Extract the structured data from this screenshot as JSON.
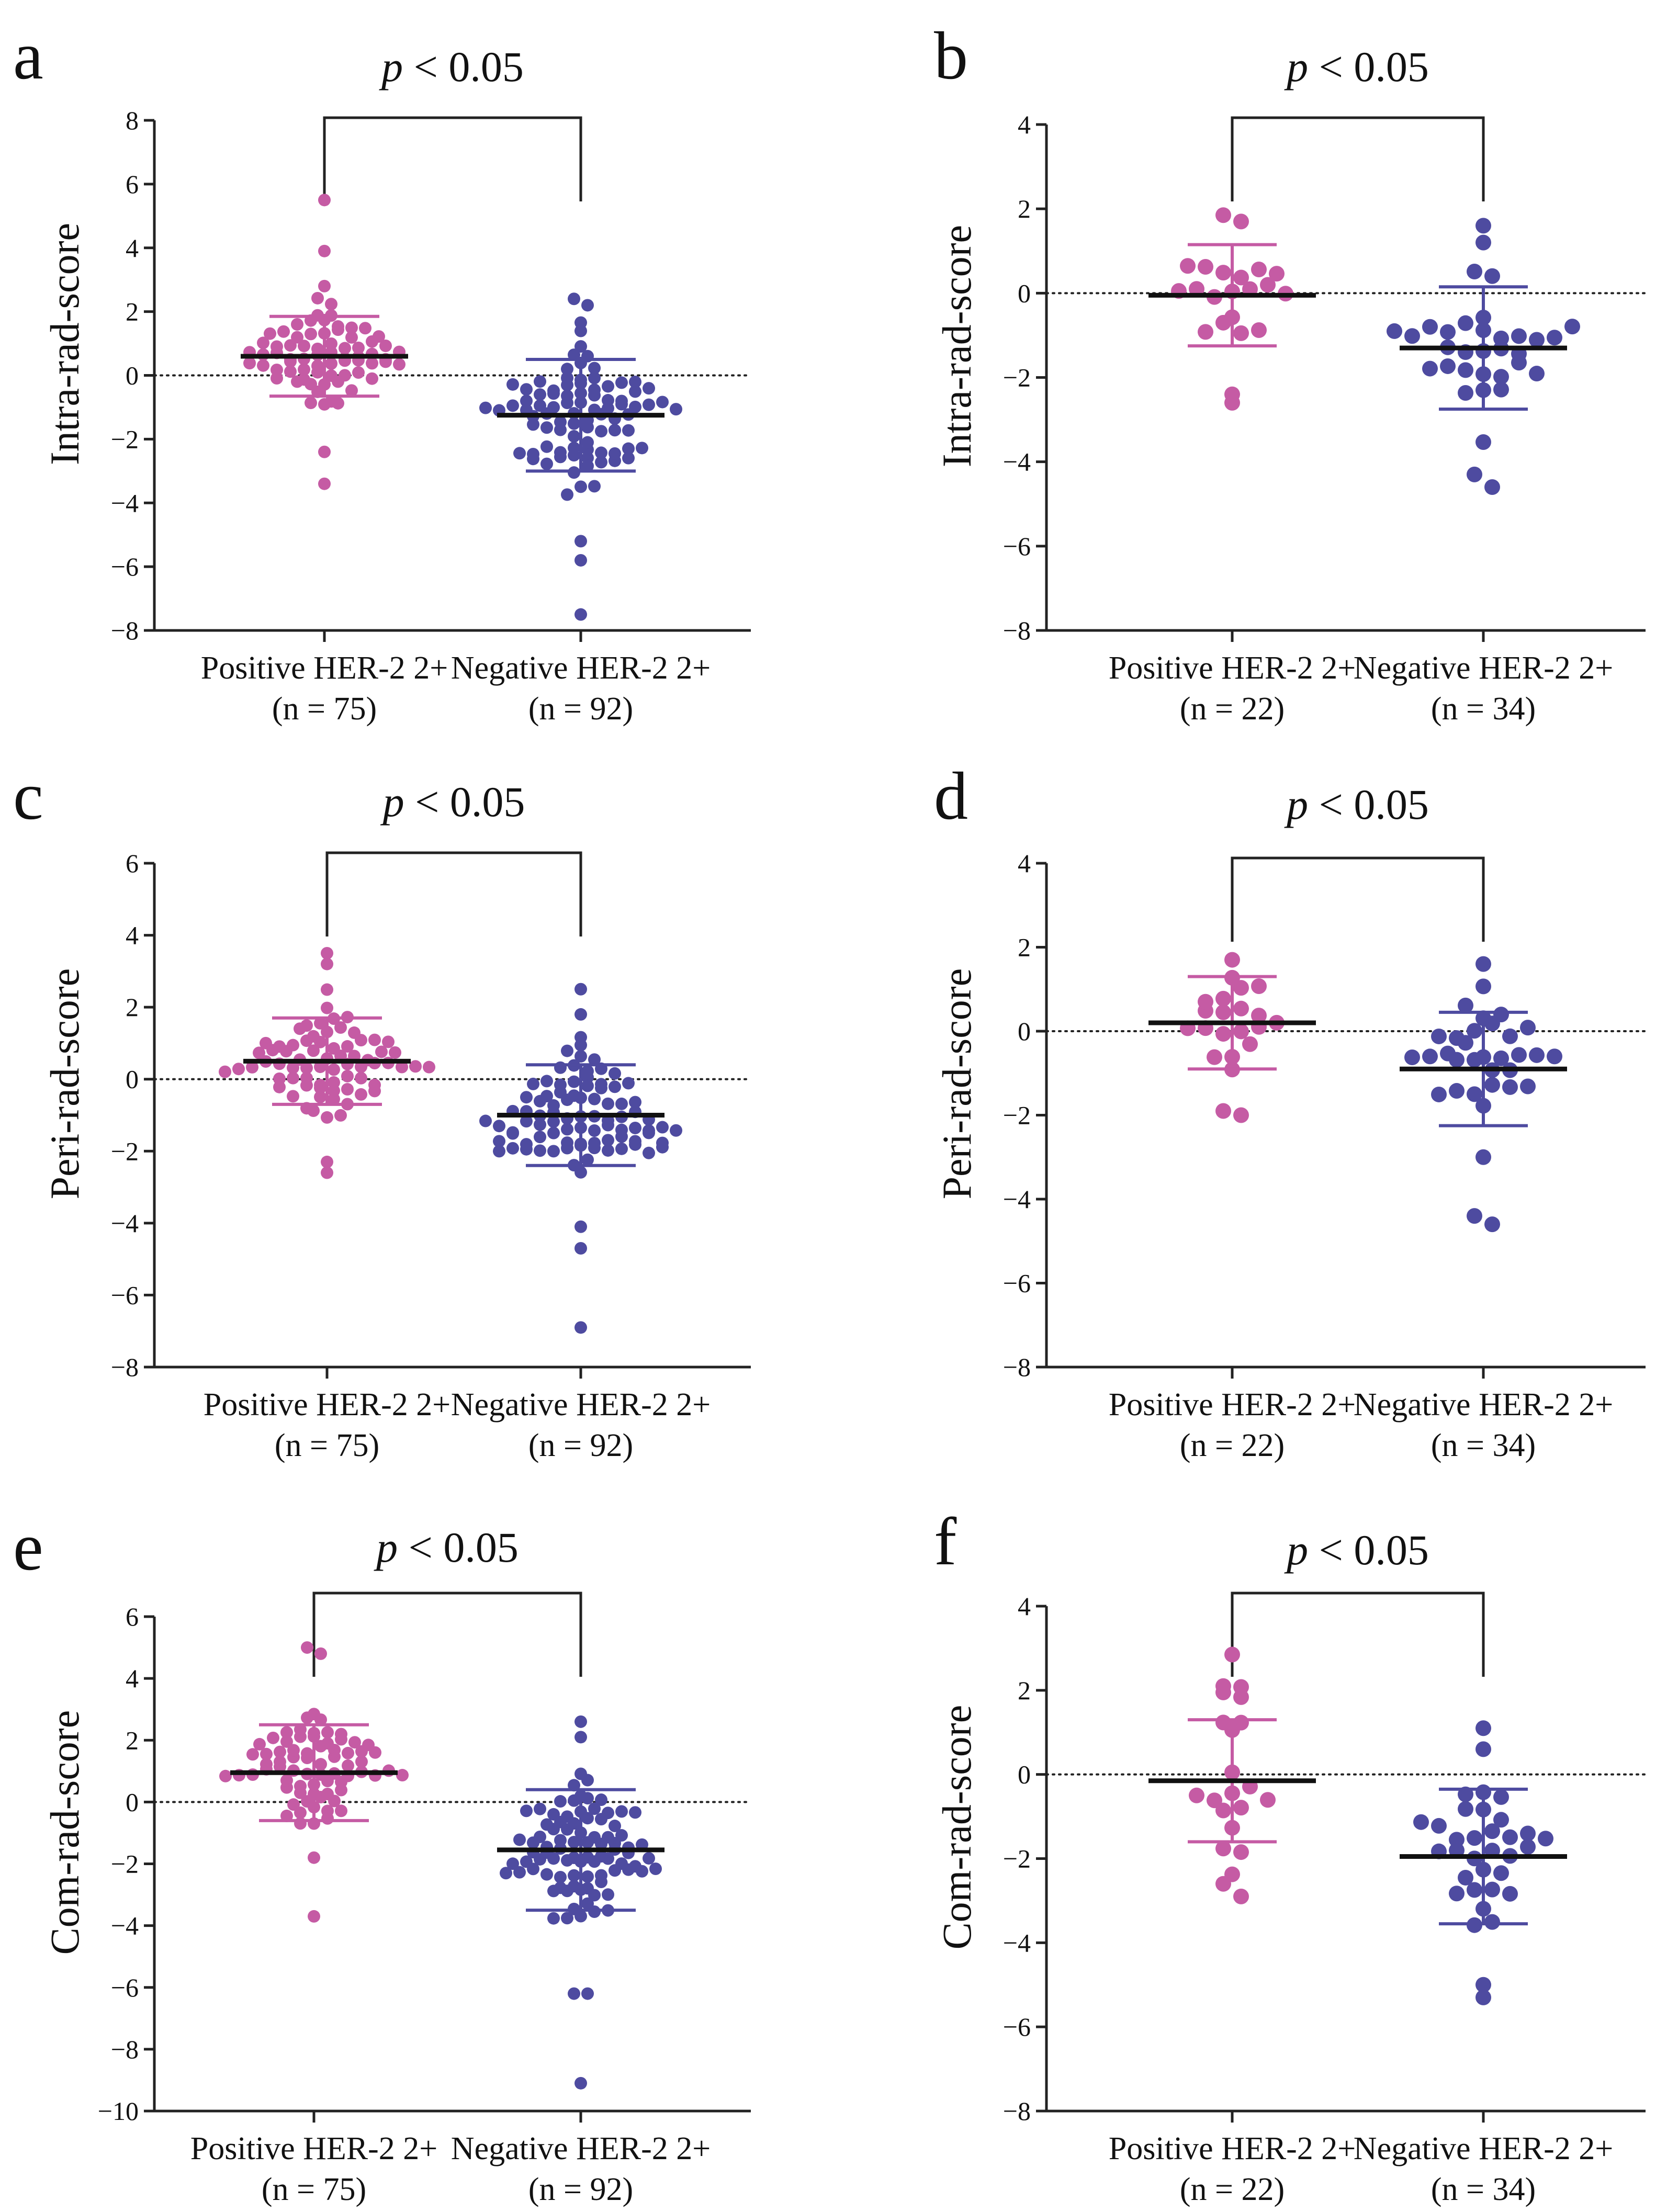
{
  "figure": {
    "colors": {
      "positive": "#c55ba4",
      "negative": "#4e4ba0",
      "axis": "#222222",
      "mean": "#111111"
    },
    "panels": [
      {
        "letter": "a",
        "ptext_italic": "p",
        "ptext_rest": " < 0.05",
        "ylabel": "Intra-rad-score",
        "cat_names": [
          "Positive HER-2 2+",
          "Negative HER-2 2+"
        ],
        "cat_ns": [
          "(n = 75)",
          "(n = 92)"
        ],
        "yticks": [
          "8",
          "6",
          "4",
          "2",
          "0",
          "−2",
          "−4",
          "−6",
          "−8"
        ]
      },
      {
        "letter": "b",
        "ptext_italic": "p",
        "ptext_rest": " < 0.05",
        "ylabel": "Intra-rad-score",
        "cat_names": [
          "Positive HER-2 2+",
          "Negative HER-2 2+"
        ],
        "cat_ns": [
          "(n = 22)",
          "(n = 34)"
        ],
        "yticks": [
          "4",
          "2",
          "0",
          "−2",
          "−4",
          "−6",
          "−8"
        ]
      },
      {
        "letter": "c",
        "ptext_italic": "p",
        "ptext_rest": " < 0.05",
        "ylabel": "Peri-rad-score",
        "cat_names": [
          "Positive HER-2 2+",
          "Negative HER-2 2+"
        ],
        "cat_ns": [
          "(n = 75)",
          "(n = 92)"
        ],
        "yticks": [
          "6",
          "4",
          "2",
          "0",
          "−2",
          "−4",
          "−6",
          "−8"
        ]
      },
      {
        "letter": "d",
        "ptext_italic": "p",
        "ptext_rest": " < 0.05",
        "ylabel": "Peri-rad-score",
        "cat_names": [
          "Positive HER-2 2+",
          "Negative HER-2 2+"
        ],
        "cat_ns": [
          "(n = 22)",
          "(n = 34)"
        ],
        "yticks": [
          "4",
          "2",
          "0",
          "−2",
          "−4",
          "−6",
          "−8"
        ]
      },
      {
        "letter": "e",
        "ptext_italic": "p",
        "ptext_rest": " < 0.05",
        "ylabel": "Com-rad-score",
        "cat_names": [
          "Positive HER-2 2+",
          "Negative HER-2 2+"
        ],
        "cat_ns": [
          "(n = 75)",
          "(n = 92)"
        ],
        "yticks": [
          "6",
          "4",
          "2",
          "0",
          "−2",
          "−4",
          "−6",
          "−8",
          "−10"
        ]
      },
      {
        "letter": "f",
        "ptext_italic": "p",
        "ptext_rest": " < 0.05",
        "ylabel": "Com-rad-score",
        "cat_names": [
          "Positive HER-2 2+",
          "Negative HER-2 2+"
        ],
        "cat_ns": [
          "(n = 22)",
          "(n = 34)"
        ],
        "yticks": [
          "4",
          "2",
          "0",
          "−2",
          "−4",
          "−6",
          "−8"
        ]
      }
    ]
  },
  "chart_data": [
    {
      "type": "scatter",
      "panel": "a",
      "ylabel": "Intra-rad-score",
      "ylim": [
        -8,
        8
      ],
      "yticks": [
        8,
        6,
        4,
        2,
        0,
        -2,
        -4,
        -6,
        -8
      ],
      "annotation": "p < 0.05",
      "reference_line_y": 0,
      "categories": [
        "Positive HER-2 2+ (n = 75)",
        "Negative HER-2 2+ (n = 92)"
      ],
      "groups": [
        {
          "category": "Positive HER-2 2+",
          "n": 75,
          "mean": 0.6,
          "sd": 1.25,
          "min": -3.4,
          "max": 5.5,
          "outliers": [
            5.5,
            3.9,
            2.8,
            -2.4,
            -3.4
          ]
        },
        {
          "category": "Negative HER-2 2+",
          "n": 92,
          "mean": -1.25,
          "sd": 1.75,
          "min": -7.5,
          "max": 2.4,
          "outliers": [
            2.4,
            2.2,
            -5.2,
            -5.8,
            -7.5
          ]
        }
      ]
    },
    {
      "type": "scatter",
      "panel": "b",
      "ylabel": "Intra-rad-score",
      "ylim": [
        -8,
        4
      ],
      "yticks": [
        4,
        2,
        0,
        -2,
        -4,
        -6,
        -8
      ],
      "annotation": "p < 0.05",
      "reference_line_y": 0,
      "categories": [
        "Positive HER-2 2+ (n = 22)",
        "Negative HER-2 2+ (n = 34)"
      ],
      "groups": [
        {
          "category": "Positive HER-2 2+",
          "n": 22,
          "mean": -0.05,
          "sd": 1.2,
          "min": -2.6,
          "max": 1.85,
          "outliers": [
            1.85,
            1.7,
            -2.4,
            -2.6
          ]
        },
        {
          "category": "Negative HER-2 2+",
          "n": 34,
          "mean": -1.3,
          "sd": 1.45,
          "min": -4.6,
          "max": 1.6,
          "outliers": [
            1.6,
            1.2,
            -4.3,
            -4.6
          ]
        }
      ]
    },
    {
      "type": "scatter",
      "panel": "c",
      "ylabel": "Peri-rad-score",
      "ylim": [
        -8,
        6
      ],
      "yticks": [
        6,
        4,
        2,
        0,
        -2,
        -4,
        -6,
        -8
      ],
      "annotation": "p < 0.05",
      "reference_line_y": 0,
      "categories": [
        "Positive HER-2 2+ (n = 75)",
        "Negative HER-2 2+ (n = 92)"
      ],
      "groups": [
        {
          "category": "Positive HER-2 2+",
          "n": 75,
          "mean": 0.5,
          "sd": 1.2,
          "min": -2.6,
          "max": 3.5,
          "outliers": [
            3.5,
            3.2,
            -2.3,
            -2.6
          ]
        },
        {
          "category": "Negative HER-2 2+",
          "n": 92,
          "mean": -1.0,
          "sd": 1.4,
          "min": -6.9,
          "max": 2.5,
          "outliers": [
            2.5,
            1.8,
            -4.1,
            -4.7,
            -6.9
          ]
        }
      ]
    },
    {
      "type": "scatter",
      "panel": "d",
      "ylabel": "Peri-rad-score",
      "ylim": [
        -8,
        4
      ],
      "yticks": [
        4,
        2,
        0,
        -2,
        -4,
        -6,
        -8
      ],
      "annotation": "p < 0.05",
      "reference_line_y": 0,
      "categories": [
        "Positive HER-2 2+ (n = 22)",
        "Negative HER-2 2+ (n = 34)"
      ],
      "groups": [
        {
          "category": "Positive HER-2 2+",
          "n": 22,
          "mean": 0.2,
          "sd": 1.1,
          "min": -2.0,
          "max": 1.7,
          "outliers": [
            1.7,
            -1.9,
            -2.0
          ]
        },
        {
          "category": "Negative HER-2 2+",
          "n": 34,
          "mean": -0.9,
          "sd": 1.35,
          "min": -4.6,
          "max": 1.6,
          "outliers": [
            1.6,
            -3.0,
            -4.4,
            -4.6
          ]
        }
      ]
    },
    {
      "type": "scatter",
      "panel": "e",
      "ylabel": "Com-rad-score",
      "ylim": [
        -10,
        6
      ],
      "yticks": [
        6,
        4,
        2,
        0,
        -2,
        -4,
        -6,
        -8,
        -10
      ],
      "annotation": "p < 0.05",
      "reference_line_y": 0,
      "categories": [
        "Positive HER-2 2+ (n = 75)",
        "Negative HER-2 2+ (n = 92)"
      ],
      "groups": [
        {
          "category": "Positive HER-2 2+",
          "n": 75,
          "mean": 0.95,
          "sd": 1.55,
          "min": -3.7,
          "max": 5.0,
          "outliers": [
            5.0,
            4.8,
            -1.8,
            -3.7
          ]
        },
        {
          "category": "Negative HER-2 2+",
          "n": 92,
          "mean": -1.55,
          "sd": 1.95,
          "min": -9.1,
          "max": 2.6,
          "outliers": [
            2.6,
            2.1,
            -6.2,
            -6.2,
            -9.1
          ]
        }
      ]
    },
    {
      "type": "scatter",
      "panel": "f",
      "ylabel": "Com-rad-score",
      "ylim": [
        -8,
        4
      ],
      "yticks": [
        4,
        2,
        0,
        -2,
        -4,
        -6,
        -8
      ],
      "annotation": "p < 0.05",
      "reference_line_y": 0,
      "categories": [
        "Positive HER-2 2+ (n = 22)",
        "Negative HER-2 2+ (n = 34)"
      ],
      "groups": [
        {
          "category": "Positive HER-2 2+",
          "n": 22,
          "mean": -0.15,
          "sd": 1.45,
          "min": -2.9,
          "max": 2.85,
          "outliers": [
            2.85,
            2.1,
            -2.6,
            -2.9
          ]
        },
        {
          "category": "Negative HER-2 2+",
          "n": 34,
          "mean": -1.95,
          "sd": 1.6,
          "min": -5.3,
          "max": 1.1,
          "outliers": [
            1.1,
            0.6,
            -5.0,
            -5.3
          ]
        }
      ]
    }
  ]
}
